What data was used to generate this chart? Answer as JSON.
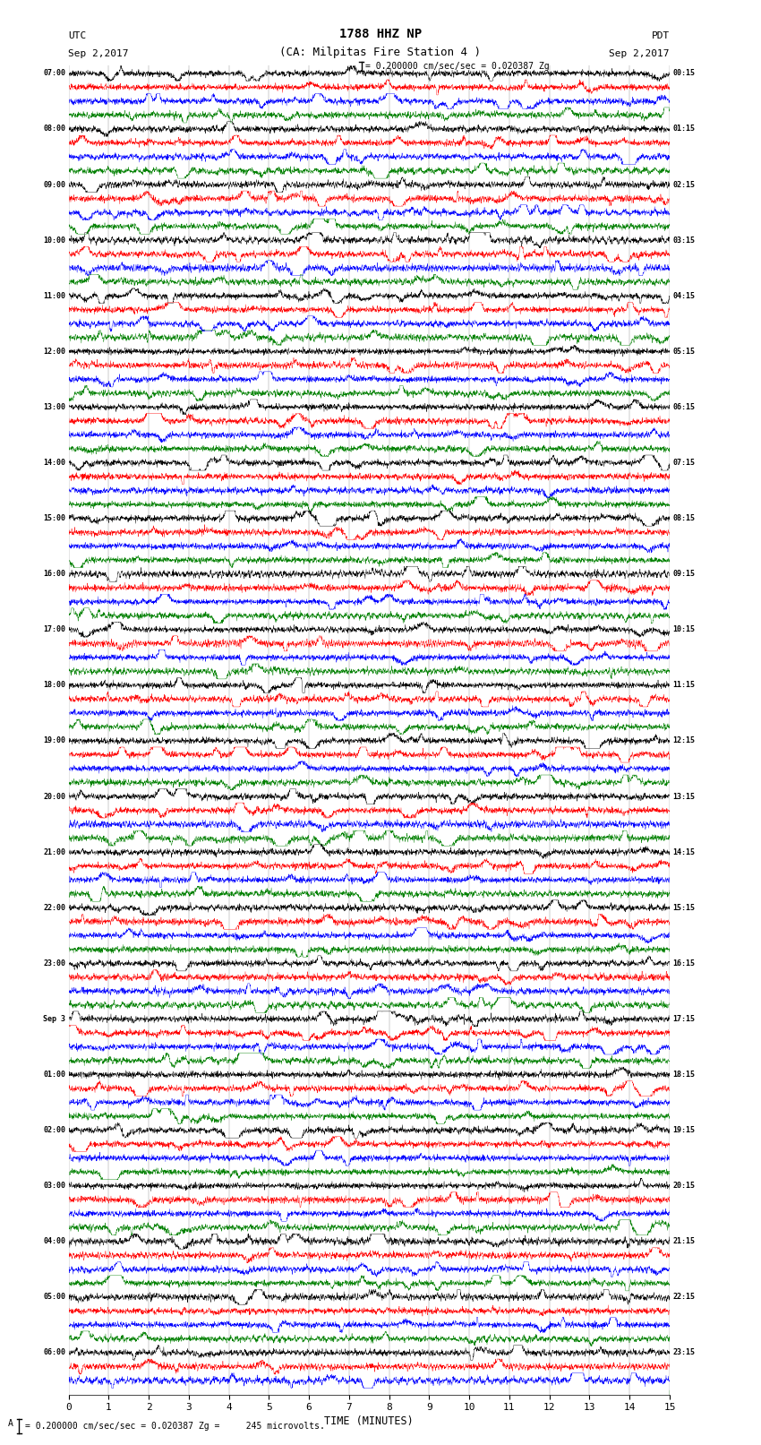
{
  "title_line1": "1788 HHZ NP",
  "title_line2": "(CA: Milpitas Fire Station 4 )",
  "utc_label": "UTC",
  "pdt_label": "PDT",
  "date_left": "Sep 2,2017",
  "date_right": "Sep 2,2017",
  "scale_text": "= 0.200000 cm/sec/sec = 0.020387 Zg",
  "bottom_text": "= 0.200000 cm/sec/sec = 0.020387 Zg =     245 microvolts.",
  "xlabel": "TIME (MINUTES)",
  "xlim": [
    0,
    15
  ],
  "xticks": [
    0,
    1,
    2,
    3,
    4,
    5,
    6,
    7,
    8,
    9,
    10,
    11,
    12,
    13,
    14,
    15
  ],
  "figsize": [
    8.5,
    16.13
  ],
  "dpi": 100,
  "background_color": "#ffffff",
  "colors": [
    "black",
    "red",
    "blue",
    "green"
  ],
  "left_times": [
    "07:00",
    "",
    "",
    "",
    "08:00",
    "",
    "",
    "",
    "09:00",
    "",
    "",
    "",
    "10:00",
    "",
    "",
    "",
    "11:00",
    "",
    "",
    "",
    "12:00",
    "",
    "",
    "",
    "13:00",
    "",
    "",
    "",
    "14:00",
    "",
    "",
    "",
    "15:00",
    "",
    "",
    "",
    "16:00",
    "",
    "",
    "",
    "17:00",
    "",
    "",
    "",
    "18:00",
    "",
    "",
    "",
    "19:00",
    "",
    "",
    "",
    "20:00",
    "",
    "",
    "",
    "21:00",
    "",
    "",
    "",
    "22:00",
    "",
    "",
    "",
    "23:00",
    "",
    "",
    "",
    "Sep 3",
    "",
    "",
    "",
    "01:00",
    "",
    "",
    "",
    "02:00",
    "",
    "",
    "",
    "03:00",
    "",
    "",
    "",
    "04:00",
    "",
    "",
    "",
    "05:00",
    "",
    "",
    "",
    "06:00",
    "",
    ""
  ],
  "right_times": [
    "00:15",
    "",
    "",
    "",
    "01:15",
    "",
    "",
    "",
    "02:15",
    "",
    "",
    "",
    "03:15",
    "",
    "",
    "",
    "04:15",
    "",
    "",
    "",
    "05:15",
    "",
    "",
    "",
    "06:15",
    "",
    "",
    "",
    "07:15",
    "",
    "",
    "",
    "08:15",
    "",
    "",
    "",
    "09:15",
    "",
    "",
    "",
    "10:15",
    "",
    "",
    "",
    "11:15",
    "",
    "",
    "",
    "12:15",
    "",
    "",
    "",
    "13:15",
    "",
    "",
    "",
    "14:15",
    "",
    "",
    "",
    "15:15",
    "",
    "",
    "",
    "16:15",
    "",
    "",
    "",
    "17:15",
    "",
    "",
    "",
    "18:15",
    "",
    "",
    "",
    "19:15",
    "",
    "",
    "",
    "20:15",
    "",
    "",
    "",
    "21:15",
    "",
    "",
    "",
    "22:15",
    "",
    "",
    "",
    "23:15",
    "",
    ""
  ],
  "n_rows": 95,
  "seed": 42
}
